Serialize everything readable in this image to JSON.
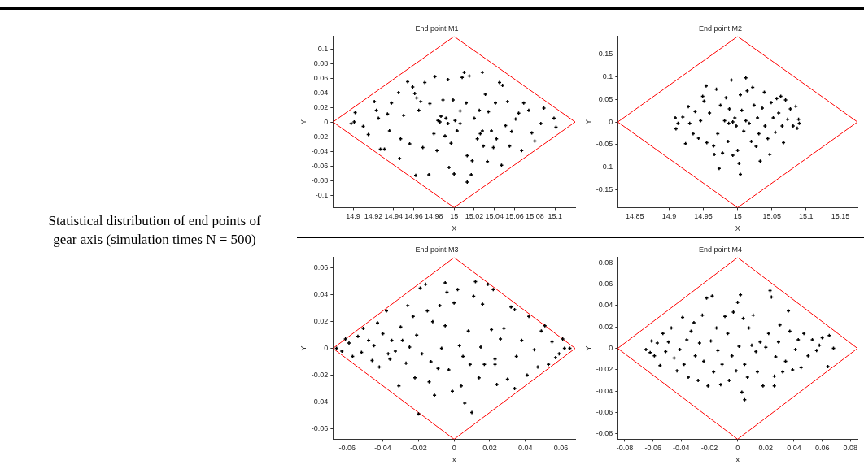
{
  "chart_data": [
    {
      "type": "scatter",
      "title": "End point M1",
      "xlabel": "X",
      "ylabel": "Y",
      "marker": "cross",
      "annotations": [
        "Statistical distribution of end points of gear axis (simulation times N = 500)"
      ],
      "xlim": [
        14.88,
        15.12
      ],
      "ylim": [
        -0.117,
        0.117
      ],
      "xticks": [
        14.9,
        14.92,
        14.94,
        14.96,
        14.98,
        15,
        15.02,
        15.04,
        15.06,
        15.08,
        15.1
      ],
      "yticks": [
        -0.1,
        -0.08,
        -0.06,
        -0.04,
        -0.02,
        0,
        0.02,
        0.04,
        0.06,
        0.08,
        0.1
      ],
      "series": [
        {
          "color": "#000000",
          "x": [
            14.898,
            14.901,
            14.902,
            14.91,
            14.915,
            14.921,
            14.923,
            14.925,
            14.927,
            14.931,
            14.934,
            14.936,
            14.938,
            14.945,
            14.946,
            14.947,
            14.95,
            14.954,
            14.956,
            14.959,
            14.961,
            14.962,
            14.963,
            14.965,
            14.967,
            14.969,
            14.971,
            14.975,
            14.976,
            14.98,
            14.981,
            14.983,
            14.986,
            14.987,
            14.989,
            14.991,
            14.994,
            14.995,
            14.997,
            14.999,
            15.0,
            15.001,
            15.003,
            15.006,
            15.008,
            15.01,
            15.012,
            15.013,
            15.015,
            15.017,
            15.018,
            15.02,
            15.023,
            15.025,
            15.026,
            15.028,
            15.029,
            15.031,
            15.033,
            15.034,
            15.037,
            15.039,
            15.041,
            15.042,
            15.045,
            15.047,
            15.048,
            15.051,
            15.053,
            15.055,
            15.057,
            15.061,
            15.064,
            15.067,
            15.069,
            15.074,
            15.077,
            15.08,
            15.086,
            15.089,
            15.099,
            15.101,
            14.992,
            14.994,
            14.984,
            15.006,
            15.013,
            15.028
          ],
          "values": [
            -0.002,
            0,
            0.013,
            -0.006,
            -0.017,
            0.028,
            0.016,
            0.005,
            -0.037,
            -0.037,
            0.011,
            -0.012,
            0.026,
            0.04,
            -0.05,
            -0.023,
            0.009,
            0.055,
            -0.03,
            0.048,
            0.039,
            -0.073,
            0.033,
            0.016,
            0.028,
            -0.035,
            0.054,
            -0.072,
            0.025,
            -0.016,
            0.062,
            -0.039,
            0,
            0.008,
            0.03,
            -0.019,
            0.058,
            -0.062,
            -0.029,
            0.03,
            -0.071,
            0.002,
            -0.012,
            0.015,
            0.061,
            0.068,
            0.026,
            -0.046,
            0.063,
            -0.072,
            -0.053,
            0.005,
            -0.023,
            0.016,
            -0.016,
            0.068,
            -0.033,
            0.038,
            -0.054,
            0.014,
            -0.012,
            -0.035,
            0.026,
            -0.023,
            0.054,
            -0.059,
            0.05,
            -0.005,
            0.028,
            -0.033,
            -0.013,
            0.004,
            0.012,
            -0.039,
            0.026,
            0.016,
            -0.015,
            -0.026,
            -0.002,
            0.019,
            0.005,
            -0.007,
            0.005,
            -0.002,
            0.002,
            -0.002,
            -0.082,
            -0.012
          ]
        },
        {
          "type": "line",
          "color": "#ff0000",
          "marker": "none",
          "x": [
            14.88,
            15,
            15.12
          ],
          "values": [
            0,
            0.117,
            0
          ]
        },
        {
          "type": "line",
          "color": "#ff0000",
          "marker": "none",
          "x": [
            14.88,
            15,
            15.12
          ],
          "values": [
            0,
            -0.117,
            0
          ]
        }
      ]
    },
    {
      "type": "scatter",
      "title": "End point M2",
      "xlabel": "X",
      "ylabel": "Y",
      "marker": "cross",
      "xlim": [
        14.825,
        15.175
      ],
      "ylim": [
        -0.19,
        0.19
      ],
      "xticks": [
        14.85,
        14.9,
        14.95,
        15,
        15.05,
        15.1,
        15.15
      ],
      "yticks": [
        -0.15,
        -0.1,
        -0.05,
        0,
        0.05,
        0.1,
        0.15
      ],
      "series": [
        {
          "color": "#000000",
          "x": [
            14.909,
            14.91,
            14.913,
            14.92,
            14.924,
            14.928,
            14.93,
            14.935,
            14.938,
            14.943,
            14.946,
            14.949,
            14.951,
            14.954,
            14.955,
            14.959,
            14.965,
            14.966,
            14.969,
            14.971,
            14.973,
            14.975,
            14.978,
            14.981,
            14.983,
            14.986,
            14.988,
            14.991,
            14.993,
            14.996,
            14.998,
            15.0,
            15.002,
            15.004,
            15.006,
            15.009,
            15.012,
            15.014,
            15.017,
            15.02,
            15.022,
            15.024,
            15.027,
            15.029,
            15.031,
            15.033,
            15.036,
            15.039,
            15.04,
            15.044,
            15.047,
            15.049,
            15.052,
            15.055,
            15.057,
            15.06,
            15.063,
            15.065,
            15.067,
            15.07,
            15.073,
            15.077,
            15.081,
            15.085,
            15.087,
            15.09,
            15.089,
            15.004,
            15.012,
            14.993,
            14.987
          ],
          "values": [
            0.009,
            -0.015,
            -0.003,
            0.011,
            -0.048,
            0.034,
            -0.003,
            -0.026,
            0.023,
            -0.036,
            0.003,
            0.057,
            0.046,
            0.08,
            -0.046,
            0.02,
            -0.053,
            -0.072,
            0.073,
            -0.026,
            -0.103,
            0.037,
            -0.069,
            0.003,
            0.054,
            -0.043,
            0.029,
            0.093,
            -0.074,
            0.009,
            -0.009,
            -0.063,
            -0.092,
            0.06,
            0.026,
            -0.02,
            0.098,
            0.069,
            -0.003,
            -0.043,
            0.077,
            0.037,
            -0.054,
            0.009,
            -0.026,
            -0.087,
            0.031,
            0.066,
            -0.009,
            -0.037,
            -0.072,
            0.043,
            0.009,
            -0.023,
            0.052,
            0.02,
            0.057,
            -0.009,
            -0.046,
            0.049,
            0.006,
            0.029,
            -0.009,
            0.035,
            -0.014,
            -0.003,
            0.006,
            -0.116,
            0.003,
            0,
            -0.003
          ]
        },
        {
          "type": "line",
          "color": "#ff0000",
          "marker": "none",
          "x": [
            14.825,
            15,
            15.175
          ],
          "values": [
            0,
            0.19,
            0
          ]
        },
        {
          "type": "line",
          "color": "#ff0000",
          "marker": "none",
          "x": [
            14.825,
            15,
            15.175
          ],
          "values": [
            0,
            -0.19,
            0
          ]
        }
      ]
    },
    {
      "type": "scatter",
      "title": "End point M3",
      "xlabel": "X",
      "ylabel": "Y",
      "marker": "cross",
      "xlim": [
        -0.068,
        0.068
      ],
      "ylim": [
        -0.068,
        0.068
      ],
      "xticks": [
        -0.06,
        -0.04,
        -0.02,
        0,
        0.02,
        0.04,
        0.06
      ],
      "yticks": [
        -0.06,
        -0.04,
        -0.02,
        0,
        0.02,
        0.04,
        0.06
      ],
      "series": [
        {
          "color": "#000000",
          "x": [
            -0.066,
            -0.063,
            -0.061,
            -0.059,
            -0.057,
            -0.054,
            -0.052,
            -0.051,
            -0.048,
            -0.046,
            -0.045,
            -0.043,
            -0.042,
            -0.04,
            -0.038,
            -0.037,
            -0.036,
            -0.035,
            -0.033,
            -0.031,
            -0.03,
            -0.029,
            -0.027,
            -0.026,
            -0.025,
            -0.023,
            -0.022,
            -0.021,
            -0.02,
            -0.019,
            -0.018,
            -0.016,
            -0.015,
            -0.014,
            -0.013,
            -0.012,
            -0.011,
            -0.009,
            -0.008,
            -0.007,
            -0.005,
            -0.005,
            -0.004,
            -0.003,
            -0.001,
            0,
            0.002,
            0.003,
            0.004,
            0.005,
            0.006,
            0.008,
            0.009,
            0.01,
            0.011,
            0.012,
            0.014,
            0.015,
            0.016,
            0.017,
            0.019,
            0.021,
            0.022,
            0.023,
            0.024,
            0.026,
            0.028,
            0.03,
            0.032,
            0.034,
            0.035,
            0.038,
            0.041,
            0.042,
            0.045,
            0.047,
            0.049,
            0.051,
            0.053,
            0.055,
            0.057,
            0.059,
            0.061,
            0.062,
            0.065,
            0.034,
            0.023
          ],
          "values": [
            0,
            -0.002,
            0.007,
            0.004,
            -0.006,
            0.009,
            -0.003,
            0.015,
            0.006,
            -0.009,
            0.002,
            0.019,
            -0.014,
            0.011,
            0.028,
            -0.004,
            -0.008,
            0.006,
            -0.002,
            -0.028,
            0.016,
            0.006,
            -0.011,
            0.032,
            0.001,
            0.024,
            -0.022,
            0.01,
            -0.049,
            0.045,
            -0.004,
            0.048,
            0.028,
            -0.025,
            -0.01,
            0.02,
            -0.035,
            -0.015,
            0.032,
            0,
            0.049,
            0.017,
            0.042,
            -0.016,
            -0.032,
            0.034,
            0.044,
            0.002,
            -0.028,
            -0.006,
            -0.041,
            0.013,
            -0.012,
            -0.048,
            0.039,
            0.05,
            -0.022,
            0.001,
            0.033,
            -0.012,
            0.048,
            0.014,
            0.044,
            -0.008,
            -0.027,
            0.007,
            0.015,
            -0.023,
            0.031,
            0.029,
            -0.006,
            0.006,
            -0.02,
            0.024,
            -0.001,
            -0.014,
            0.013,
            0.017,
            -0.012,
            0.005,
            -0.007,
            -0.004,
            0.007,
            0,
            0,
            -0.03,
            -0.012
          ]
        },
        {
          "type": "line",
          "color": "#ff0000",
          "marker": "none",
          "x": [
            -0.068,
            0,
            0.068
          ],
          "values": [
            0,
            0.068,
            0
          ]
        },
        {
          "type": "line",
          "color": "#ff0000",
          "marker": "none",
          "x": [
            -0.068,
            0,
            0.068
          ],
          "values": [
            0,
            -0.068,
            0
          ]
        }
      ]
    },
    {
      "type": "scatter",
      "title": "End point M4",
      "xlabel": "X",
      "ylabel": "Y",
      "marker": "cross",
      "xlim": [
        -0.085,
        0.085
      ],
      "ylim": [
        -0.085,
        0.085
      ],
      "xticks": [
        -0.08,
        -0.06,
        -0.04,
        -0.02,
        0,
        0.02,
        0.04,
        0.06,
        0.08
      ],
      "yticks": [
        -0.08,
        -0.06,
        -0.04,
        -0.02,
        0,
        0.02,
        0.04,
        0.06,
        0.08
      ],
      "series": [
        {
          "color": "#000000",
          "x": [
            -0.065,
            -0.062,
            -0.061,
            -0.059,
            -0.057,
            -0.055,
            -0.053,
            -0.051,
            -0.049,
            -0.047,
            -0.045,
            -0.043,
            -0.041,
            -0.039,
            -0.038,
            -0.036,
            -0.035,
            -0.033,
            -0.031,
            -0.03,
            -0.028,
            -0.027,
            -0.025,
            -0.024,
            -0.022,
            -0.021,
            -0.019,
            -0.018,
            -0.017,
            -0.015,
            -0.014,
            -0.012,
            -0.011,
            -0.009,
            -0.007,
            -0.006,
            -0.004,
            -0.003,
            -0.001,
            0,
            0.001,
            0.002,
            0.003,
            0.004,
            0.005,
            0.007,
            0.008,
            0.01,
            0.011,
            0.013,
            0.014,
            0.016,
            0.018,
            0.02,
            0.022,
            0.023,
            0.024,
            0.026,
            0.027,
            0.029,
            0.03,
            0.032,
            0.034,
            0.036,
            0.037,
            0.039,
            0.041,
            0.043,
            0.045,
            0.047,
            0.05,
            0.053,
            0.056,
            0.058,
            0.06,
            0.064,
            0.065,
            0.068,
            0.026,
            0.005
          ],
          "values": [
            -0.001,
            -0.004,
            0.007,
            -0.007,
            0.005,
            -0.016,
            0.014,
            -0.003,
            0.006,
            0.019,
            -0.009,
            -0.021,
            -0.001,
            0.029,
            -0.015,
            0.008,
            -0.027,
            0.016,
            0.024,
            -0.007,
            -0.03,
            0.005,
            0.031,
            -0.012,
            0.047,
            -0.035,
            0.007,
            0.049,
            -0.022,
            0.019,
            -0.002,
            -0.034,
            -0.015,
            0.03,
            0.014,
            -0.03,
            -0.007,
            0.034,
            -0.021,
            0.043,
            0.002,
            0.05,
            -0.041,
            0.028,
            -0.015,
            -0.027,
            0.019,
            0.003,
            0.031,
            -0.003,
            -0.022,
            0.006,
            -0.035,
            0.001,
            0.014,
            0.054,
            0.048,
            -0.026,
            -0.008,
            0.006,
            0.022,
            -0.022,
            -0.012,
            0.035,
            0.016,
            -0.02,
            -0.001,
            0.008,
            -0.018,
            0.014,
            -0.007,
            0.008,
            -0.002,
            0.003,
            0.01,
            -0.017,
            0.012,
            0,
            -0.035,
            -0.048
          ]
        },
        {
          "type": "line",
          "color": "#ff0000",
          "marker": "none",
          "x": [
            -0.085,
            0,
            0.085
          ],
          "values": [
            0,
            0.085,
            0
          ]
        },
        {
          "type": "line",
          "color": "#ff0000",
          "marker": "none",
          "x": [
            -0.085,
            0,
            0.085
          ],
          "values": [
            0,
            -0.085,
            0
          ]
        }
      ]
    }
  ]
}
